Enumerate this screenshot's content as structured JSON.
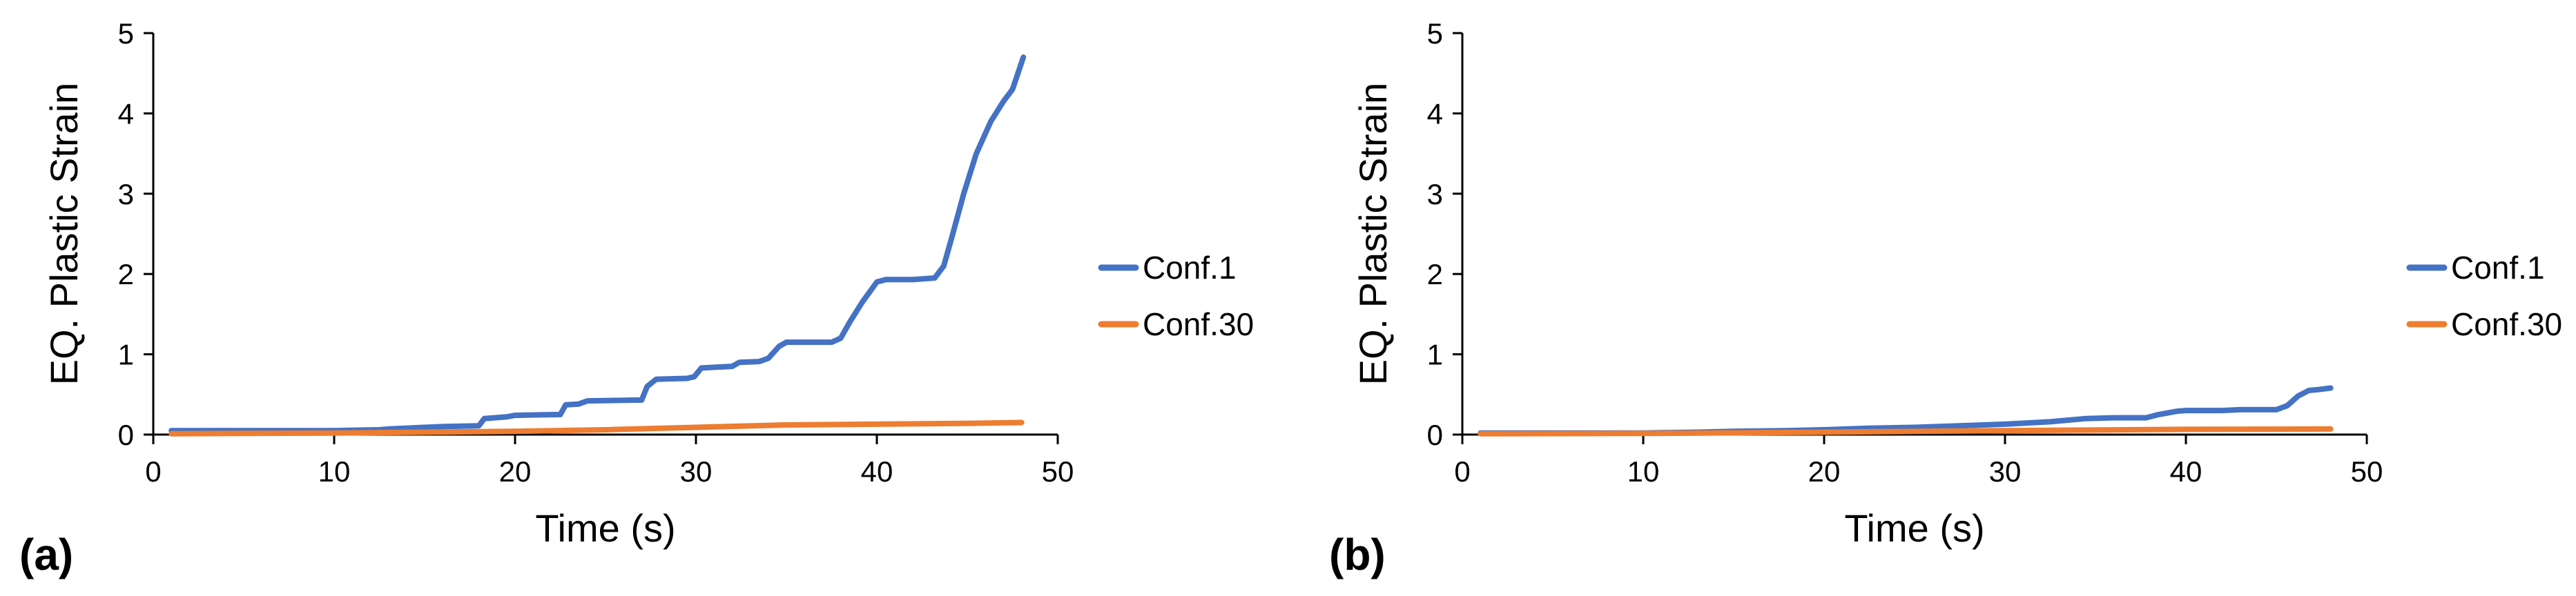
{
  "chart_data": [
    {
      "type": "line",
      "panel_label": "(a)",
      "xlabel": "Time (s)",
      "ylabel": "EQ. Plastic Strain",
      "xlim": [
        0,
        50
      ],
      "ylim": [
        0,
        5
      ],
      "xticks": [
        0,
        10,
        20,
        30,
        40,
        50
      ],
      "yticks": [
        0,
        1,
        2,
        3,
        4,
        5
      ],
      "grid": false,
      "legend_position": "right",
      "series": [
        {
          "name": "Conf.1",
          "color": "#4472C4",
          "x": [
            1,
            5,
            10,
            12.5,
            13,
            15,
            16,
            18,
            18.3,
            19.5,
            20,
            22.5,
            22.8,
            23.5,
            24,
            27,
            27.3,
            27.8,
            29.5,
            29.9,
            30.3,
            32,
            32.4,
            33.5,
            34,
            34.6,
            35,
            37.5,
            38,
            38.5,
            39.2,
            40,
            40.5,
            42,
            43.2,
            43.7,
            44.2,
            44.8,
            45.5,
            46.3,
            47,
            47.5,
            47.8,
            48.1
          ],
          "values": [
            0.05,
            0.05,
            0.05,
            0.06,
            0.07,
            0.09,
            0.1,
            0.11,
            0.2,
            0.22,
            0.24,
            0.25,
            0.37,
            0.38,
            0.42,
            0.43,
            0.6,
            0.69,
            0.7,
            0.72,
            0.83,
            0.85,
            0.9,
            0.91,
            0.95,
            1.1,
            1.15,
            1.15,
            1.2,
            1.4,
            1.65,
            1.9,
            1.93,
            1.93,
            1.95,
            2.1,
            2.5,
            3.0,
            3.5,
            3.9,
            4.15,
            4.3,
            4.5,
            4.7
          ]
        },
        {
          "name": "Conf.30",
          "color": "#ED7D31",
          "x": [
            1,
            10,
            15,
            20,
            25,
            30,
            35,
            40,
            45,
            48
          ],
          "values": [
            0.01,
            0.02,
            0.03,
            0.04,
            0.06,
            0.09,
            0.12,
            0.13,
            0.14,
            0.15
          ]
        }
      ]
    },
    {
      "type": "line",
      "panel_label": "(b)",
      "xlabel": "Time (s)",
      "ylabel": "EQ. Plastic Strain",
      "xlim": [
        0,
        50
      ],
      "ylim": [
        0,
        5
      ],
      "xticks": [
        0,
        10,
        20,
        30,
        40,
        50
      ],
      "yticks": [
        0,
        1,
        2,
        3,
        4,
        5
      ],
      "grid": false,
      "legend_position": "right",
      "series": [
        {
          "name": "Conf.1",
          "color": "#4472C4",
          "x": [
            1,
            10,
            13,
            15,
            18,
            20,
            22.5,
            25,
            27.5,
            30,
            32.5,
            34.5,
            36,
            37.8,
            38.5,
            39.5,
            40,
            42,
            43,
            45,
            45.6,
            46.2,
            46.8,
            47.3,
            48
          ],
          "values": [
            0.02,
            0.02,
            0.03,
            0.04,
            0.05,
            0.06,
            0.08,
            0.09,
            0.11,
            0.13,
            0.16,
            0.2,
            0.21,
            0.21,
            0.25,
            0.29,
            0.3,
            0.3,
            0.31,
            0.31,
            0.36,
            0.48,
            0.55,
            0.56,
            0.58
          ]
        },
        {
          "name": "Conf.30",
          "color": "#ED7D31",
          "x": [
            1,
            10,
            20,
            30,
            40,
            48
          ],
          "values": [
            0.01,
            0.015,
            0.03,
            0.05,
            0.065,
            0.07
          ]
        }
      ]
    }
  ]
}
